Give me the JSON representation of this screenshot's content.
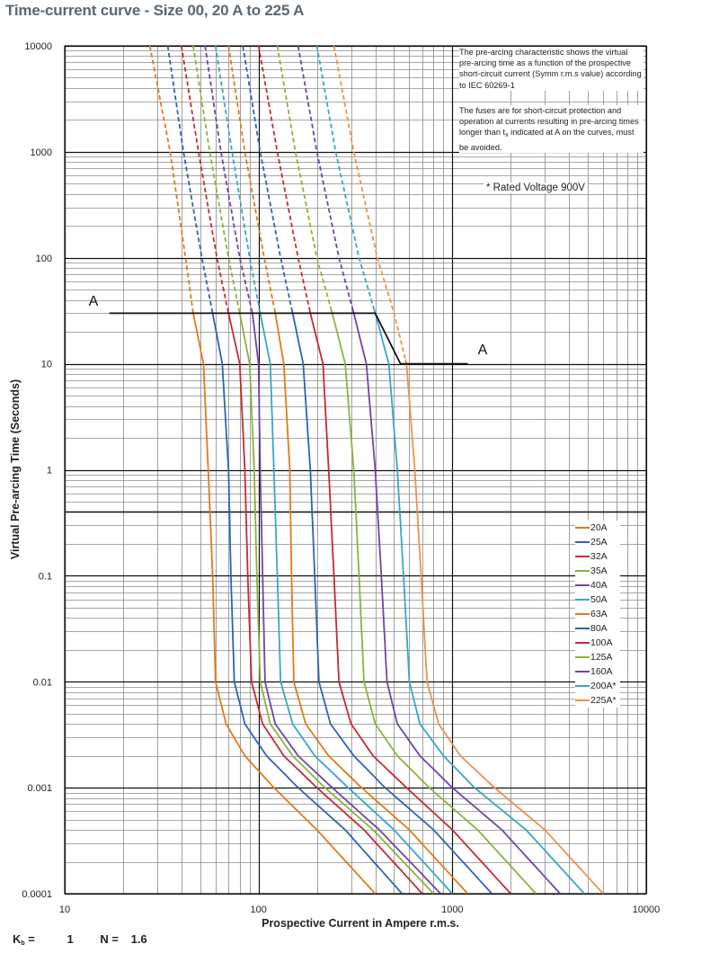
{
  "title": "Time-current curve - Size 00, 20 A to 225 A",
  "notes": {
    "note1": "The pre-arcing characteristic shows the virtual pre-arcing time as a function of the prospective short-circuit current (Symm r.m.s value) according to IEC 60269-1",
    "note2_before": "The fuses are for short-circuit protection and operation at currents resulting in pre-arcing times longer than t",
    "note2_sub": "x",
    "note2_after": " indicated at A on the curves, must be avoided.",
    "rated_voltage": "* Rated Voltage 900V"
  },
  "footer": {
    "kb_label": "K",
    "kb_sub": "b",
    "kb_eq": " =",
    "kb_value": "1",
    "n_label": "N =",
    "n_value": "1.6"
  },
  "chart_data": {
    "type": "line",
    "title": "Time-current curve - Size 00, 20 A to 225 A",
    "xlabel": "Prospective Current in Ampere r.m.s.",
    "ylabel": "Virtual Pre-arcing Time (Seconds)",
    "xscale": "log",
    "yscale": "log",
    "xlim": [
      10,
      10000
    ],
    "ylim": [
      0.0001,
      10000
    ],
    "x_ticks": [
      "10",
      "100",
      "1000",
      "10000"
    ],
    "y_ticks": [
      "0.0001",
      "0.001",
      "0.01",
      "0.1",
      "1",
      "10",
      "100",
      "1000",
      "10000"
    ],
    "legend_position": "lower-right",
    "grid": true,
    "note": "Curves are dashed above the A line (operation to be avoided), solid below.",
    "limit_line_A": {
      "label": "A",
      "points": [
        [
          17,
          30
        ],
        [
          400,
          30
        ],
        [
          540,
          10
        ],
        [
          1200,
          10
        ]
      ]
    },
    "series": [
      {
        "name": "20A",
        "color": "#e07b18",
        "points": [
          [
            27.5,
            10000
          ],
          [
            35,
            1000
          ],
          [
            42,
            100
          ],
          [
            46,
            30
          ],
          [
            52,
            10
          ],
          [
            55,
            1
          ],
          [
            58,
            0.1
          ],
          [
            60,
            0.01
          ],
          [
            68,
            0.004
          ],
          [
            85,
            0.002
          ],
          [
            120,
            0.001
          ],
          [
            200,
            0.0004
          ],
          [
            400,
            0.0001
          ]
        ]
      },
      {
        "name": "25A",
        "color": "#2e63b5",
        "points": [
          [
            34,
            10000
          ],
          [
            41,
            1000
          ],
          [
            51,
            100
          ],
          [
            58,
            30
          ],
          [
            65,
            10
          ],
          [
            70,
            1
          ],
          [
            72,
            0.1
          ],
          [
            75,
            0.01
          ],
          [
            85,
            0.004
          ],
          [
            110,
            0.002
          ],
          [
            160,
            0.001
          ],
          [
            280,
            0.0004
          ],
          [
            550,
            0.0001
          ]
        ]
      },
      {
        "name": "32A",
        "color": "#c62a33",
        "points": [
          [
            40,
            10000
          ],
          [
            49,
            1000
          ],
          [
            61,
            100
          ],
          [
            70,
            30
          ],
          [
            80,
            10
          ],
          [
            85,
            1
          ],
          [
            88,
            0.1
          ],
          [
            92,
            0.01
          ],
          [
            105,
            0.004
          ],
          [
            135,
            0.002
          ],
          [
            200,
            0.001
          ],
          [
            350,
            0.0004
          ],
          [
            700,
            0.0001
          ]
        ]
      },
      {
        "name": "35A",
        "color": "#8ab33d",
        "points": [
          [
            46,
            10000
          ],
          [
            56,
            1000
          ],
          [
            70,
            100
          ],
          [
            80,
            30
          ],
          [
            90,
            10
          ],
          [
            95,
            1
          ],
          [
            98,
            0.1
          ],
          [
            102,
            0.01
          ],
          [
            115,
            0.004
          ],
          [
            150,
            0.002
          ],
          [
            220,
            0.001
          ],
          [
            390,
            0.0004
          ],
          [
            800,
            0.0001
          ]
        ]
      },
      {
        "name": "40A",
        "color": "#6f44a8",
        "points": [
          [
            53,
            10000
          ],
          [
            64,
            1000
          ],
          [
            80,
            100
          ],
          [
            93,
            30
          ],
          [
            100,
            10
          ],
          [
            102,
            1
          ],
          [
            105,
            0.1
          ],
          [
            108,
            0.01
          ],
          [
            122,
            0.004
          ],
          [
            160,
            0.002
          ],
          [
            240,
            0.001
          ],
          [
            420,
            0.0004
          ],
          [
            870,
            0.0001
          ]
        ]
      },
      {
        "name": "50A",
        "color": "#37a7c5",
        "points": [
          [
            60,
            10000
          ],
          [
            73,
            1000
          ],
          [
            90,
            100
          ],
          [
            102,
            30
          ],
          [
            115,
            10
          ],
          [
            120,
            1
          ],
          [
            125,
            0.1
          ],
          [
            130,
            0.01
          ],
          [
            150,
            0.004
          ],
          [
            195,
            0.002
          ],
          [
            290,
            0.001
          ],
          [
            500,
            0.0004
          ],
          [
            1000,
            0.0001
          ]
        ]
      },
      {
        "name": "63A",
        "color": "#e07b18",
        "points": [
          [
            70,
            10000
          ],
          [
            85,
            1000
          ],
          [
            107,
            100
          ],
          [
            122,
            30
          ],
          [
            135,
            10
          ],
          [
            145,
            1
          ],
          [
            148,
            0.1
          ],
          [
            152,
            0.01
          ],
          [
            175,
            0.004
          ],
          [
            230,
            0.002
          ],
          [
            340,
            0.001
          ],
          [
            600,
            0.0004
          ],
          [
            1200,
            0.0001
          ]
        ]
      },
      {
        "name": "80A",
        "color": "#2e63b5",
        "points": [
          [
            83,
            10000
          ],
          [
            102,
            1000
          ],
          [
            130,
            100
          ],
          [
            150,
            30
          ],
          [
            170,
            10
          ],
          [
            185,
            1
          ],
          [
            195,
            0.1
          ],
          [
            205,
            0.01
          ],
          [
            235,
            0.004
          ],
          [
            310,
            0.002
          ],
          [
            450,
            0.001
          ],
          [
            800,
            0.0004
          ],
          [
            1600,
            0.0001
          ]
        ]
      },
      {
        "name": "100A",
        "color": "#c62a33",
        "points": [
          [
            100,
            10000
          ],
          [
            125,
            1000
          ],
          [
            160,
            100
          ],
          [
            185,
            30
          ],
          [
            215,
            10
          ],
          [
            230,
            1
          ],
          [
            245,
            0.1
          ],
          [
            260,
            0.01
          ],
          [
            300,
            0.004
          ],
          [
            390,
            0.002
          ],
          [
            580,
            0.001
          ],
          [
            1000,
            0.0004
          ],
          [
            2000,
            0.0001
          ]
        ]
      },
      {
        "name": "125A",
        "color": "#8ab33d",
        "points": [
          [
            125,
            10000
          ],
          [
            155,
            1000
          ],
          [
            200,
            100
          ],
          [
            240,
            30
          ],
          [
            280,
            10
          ],
          [
            310,
            1
          ],
          [
            330,
            0.1
          ],
          [
            350,
            0.01
          ],
          [
            400,
            0.004
          ],
          [
            520,
            0.002
          ],
          [
            760,
            0.001
          ],
          [
            1350,
            0.0004
          ],
          [
            2700,
            0.0001
          ]
        ]
      },
      {
        "name": "160A",
        "color": "#6f44a8",
        "points": [
          [
            160,
            10000
          ],
          [
            200,
            1000
          ],
          [
            260,
            100
          ],
          [
            310,
            30
          ],
          [
            360,
            10
          ],
          [
            400,
            1
          ],
          [
            430,
            0.1
          ],
          [
            460,
            0.01
          ],
          [
            520,
            0.004
          ],
          [
            680,
            0.002
          ],
          [
            1000,
            0.001
          ],
          [
            1800,
            0.0004
          ],
          [
            3600,
            0.0001
          ]
        ]
      },
      {
        "name": "200A*",
        "color": "#37a7c5",
        "points": [
          [
            200,
            10000
          ],
          [
            250,
            1000
          ],
          [
            330,
            100
          ],
          [
            400,
            30
          ],
          [
            470,
            10
          ],
          [
            520,
            1
          ],
          [
            560,
            0.1
          ],
          [
            600,
            0.01
          ],
          [
            680,
            0.004
          ],
          [
            900,
            0.002
          ],
          [
            1300,
            0.001
          ],
          [
            2400,
            0.0004
          ],
          [
            4800,
            0.0001
          ]
        ]
      },
      {
        "name": "225A*",
        "color": "#f0904a",
        "points": [
          [
            245,
            10000
          ],
          [
            310,
            1000
          ],
          [
            410,
            100
          ],
          [
            500,
            30
          ],
          [
            580,
            10
          ],
          [
            640,
            1
          ],
          [
            690,
            0.1
          ],
          [
            740,
            0.01
          ],
          [
            850,
            0.004
          ],
          [
            1100,
            0.002
          ],
          [
            1650,
            0.001
          ],
          [
            3000,
            0.0004
          ],
          [
            6000,
            0.0001
          ]
        ]
      }
    ]
  }
}
